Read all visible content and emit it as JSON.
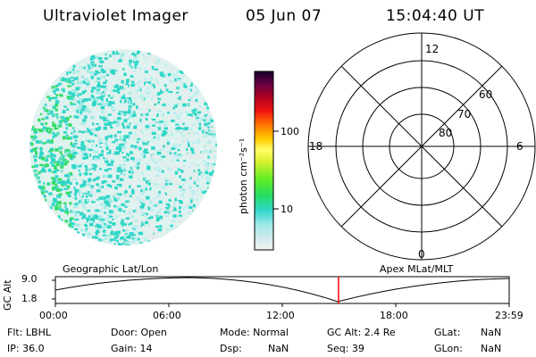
{
  "header": {
    "title": "Ultraviolet Imager",
    "date": "05 Jun 07",
    "time": "15:04:40 UT"
  },
  "colorbar": {
    "label": "photon cm⁻²s⁻¹",
    "ticks": [
      "100",
      "10"
    ]
  },
  "polar_plot": {
    "mlt_labels": [
      "12",
      "18",
      "6",
      "0"
    ],
    "lat_labels": [
      "60",
      "70",
      "80"
    ]
  },
  "timeline": {
    "left_title": "Geographic Lat/Lon",
    "right_title": "Apex MLat/MLT",
    "y_axis_label": "GC Alt",
    "y_ticks": [
      "9.0",
      "1.8"
    ],
    "x_ticks": [
      "00:00",
      "06:00",
      "12:00",
      "18:00",
      "23:59"
    ],
    "cursor_color": "#ff0000"
  },
  "info": {
    "flt": "Flt: LBHL",
    "ip": "IP: 36.0",
    "door": "Door: Open",
    "gain": "Gain: 14",
    "mode": "Mode: Normal",
    "dsp_label": "Dsp:",
    "dsp_value": "NaN",
    "gc_alt": "GC Alt: 2.4 Re",
    "seq": "Seq: 39",
    "glat_label": "GLat:",
    "glat_value": "NaN",
    "glon_label": "GLon:",
    "glon_value": "NaN"
  }
}
